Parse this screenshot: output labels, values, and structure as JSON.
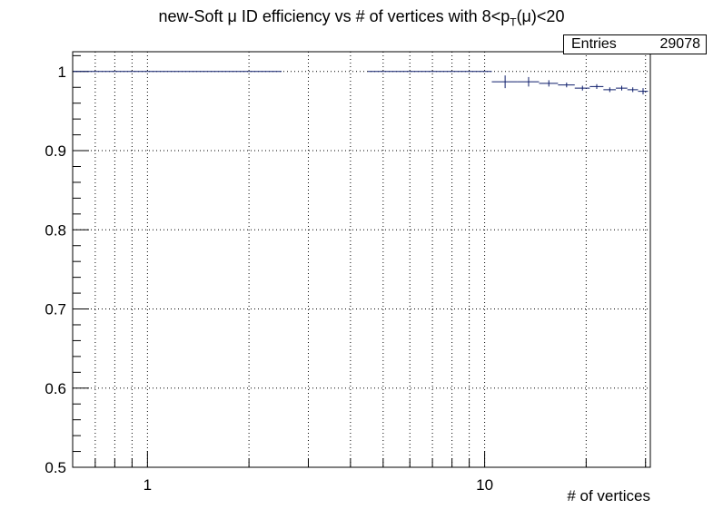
{
  "chart_data": {
    "type": "scatter",
    "title_parts": [
      "new-Soft μ ID efficiency vs # of vertices with 8<p",
      "T",
      "(μ)<20"
    ],
    "xlabel": "# of vertices",
    "ylabel": "",
    "x_scale": "log",
    "xlim": [
      0.6,
      31
    ],
    "ylim": [
      0.5,
      1.025
    ],
    "x_tick_labels": [
      {
        "value": 1,
        "label": "1"
      },
      {
        "value": 10,
        "label": "10"
      }
    ],
    "y_tick_labels": [
      {
        "value": 0.5,
        "label": "0.5"
      },
      {
        "value": 0.6,
        "label": "0.6"
      },
      {
        "value": 0.7,
        "label": "0.7"
      },
      {
        "value": 0.8,
        "label": "0.8"
      },
      {
        "value": 0.9,
        "label": "0.9"
      },
      {
        "value": 1.0,
        "label": "1"
      }
    ],
    "grid": true,
    "stats_box": {
      "label": "Entries",
      "value": "29078"
    },
    "color": "#0d1d6b",
    "points": [
      {
        "xlow": 0.6,
        "xhigh": 2.5,
        "y": 1.0,
        "err": 0.0
      },
      {
        "xlow": 4.5,
        "xhigh": 10.5,
        "y": 1.0,
        "err": 0.0
      },
      {
        "xlow": 10.5,
        "xhigh": 12.5,
        "y": 0.987,
        "err": 0.008
      },
      {
        "xlow": 12.5,
        "xhigh": 14.5,
        "y": 0.987,
        "err": 0.006
      },
      {
        "xlow": 14.5,
        "xhigh": 16.5,
        "y": 0.985,
        "err": 0.004
      },
      {
        "xlow": 16.5,
        "xhigh": 18.5,
        "y": 0.983,
        "err": 0.003
      },
      {
        "xlow": 18.5,
        "xhigh": 20.5,
        "y": 0.979,
        "err": 0.003
      },
      {
        "xlow": 20.5,
        "xhigh": 22.5,
        "y": 0.981,
        "err": 0.003
      },
      {
        "xlow": 22.5,
        "xhigh": 24.5,
        "y": 0.977,
        "err": 0.003
      },
      {
        "xlow": 24.5,
        "xhigh": 26.5,
        "y": 0.979,
        "err": 0.003
      },
      {
        "xlow": 26.5,
        "xhigh": 28.5,
        "y": 0.977,
        "err": 0.003
      },
      {
        "xlow": 28.5,
        "xhigh": 30.5,
        "y": 0.975,
        "err": 0.004
      }
    ]
  }
}
